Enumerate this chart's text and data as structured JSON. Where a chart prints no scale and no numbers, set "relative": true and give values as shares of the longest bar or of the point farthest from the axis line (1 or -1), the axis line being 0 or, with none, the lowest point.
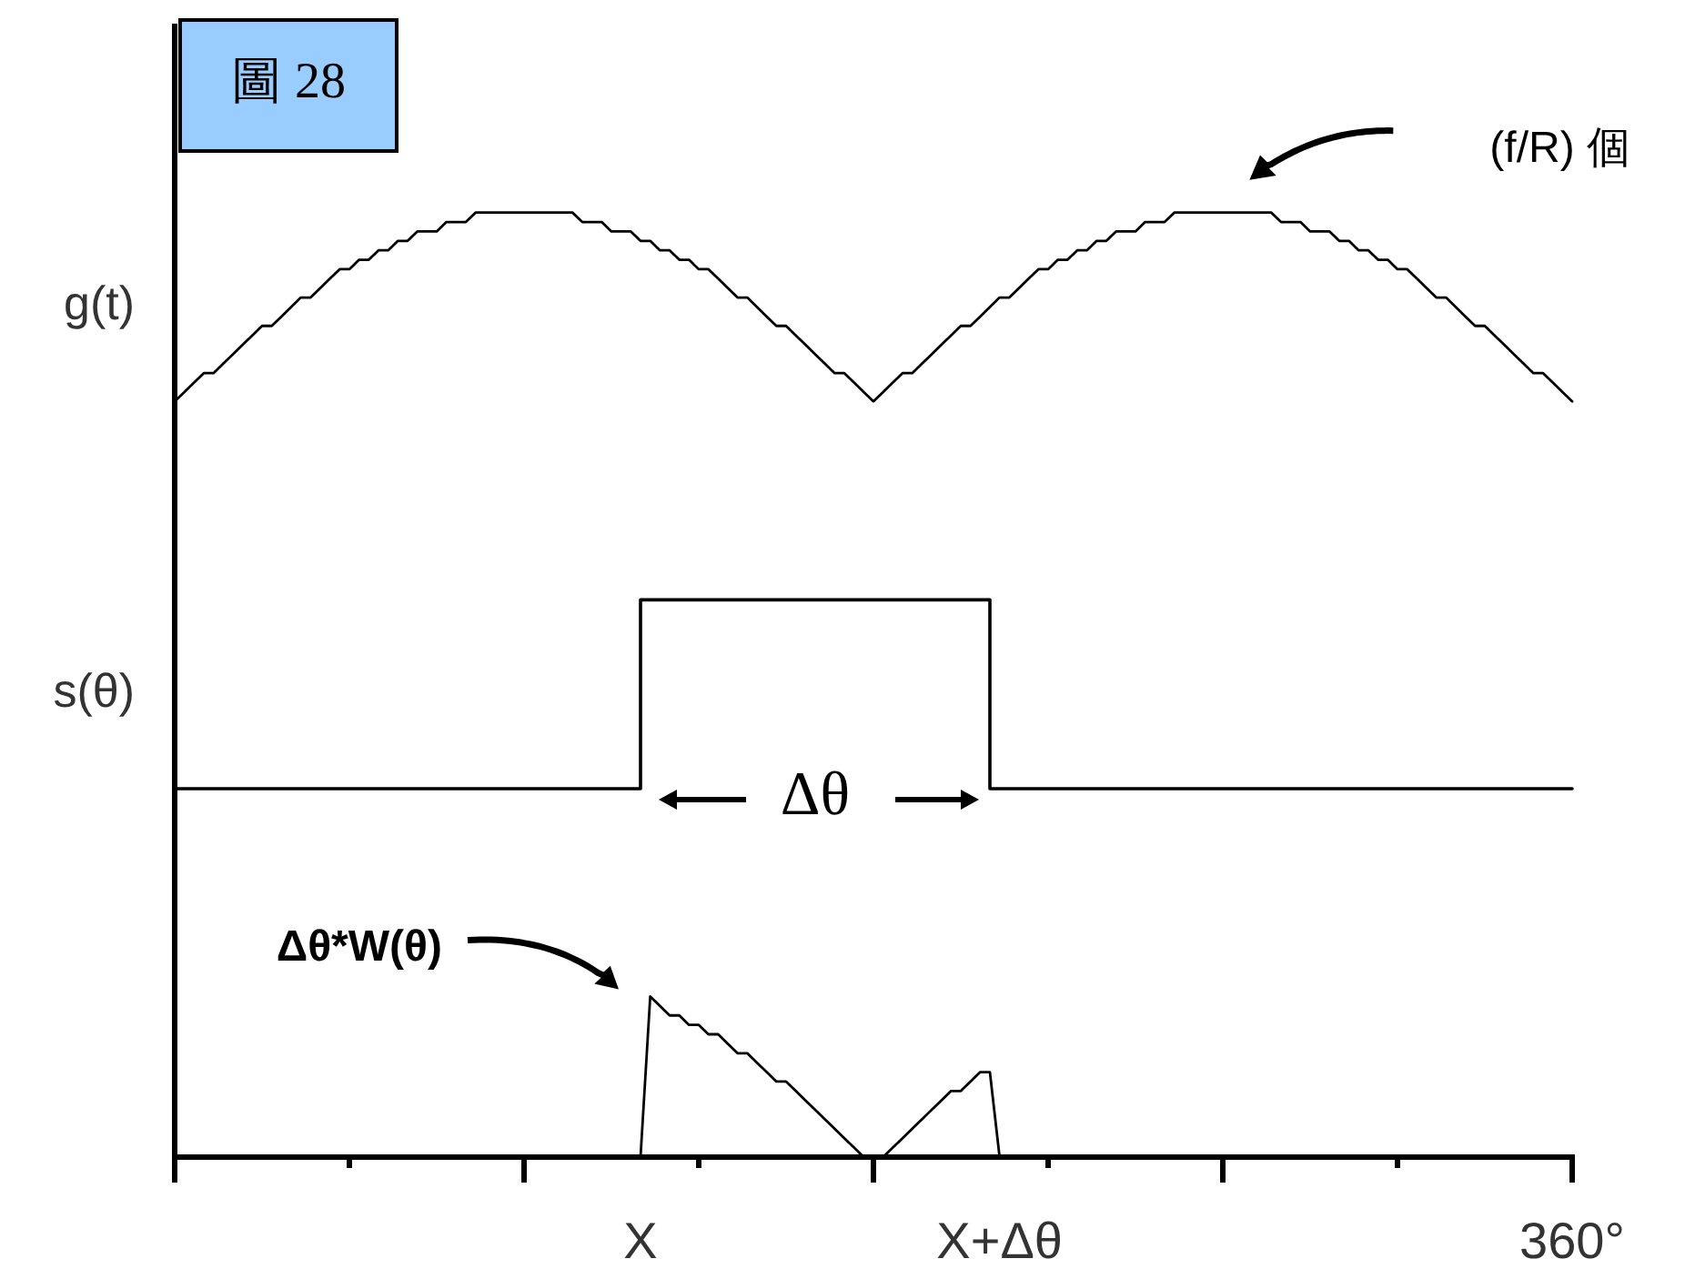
{
  "chart_data": {
    "type": "line",
    "title": "圖 28",
    "relative": true,
    "categories": [
      null,
      null,
      null,
      null,
      null,
      null,
      null,
      null,
      null,
      null,
      null,
      null,
      null,
      null,
      null,
      null,
      null,
      null,
      null,
      null,
      null,
      null,
      null,
      null,
      null,
      null,
      null,
      null,
      null,
      null,
      null,
      null,
      null,
      null,
      null,
      null,
      null,
      null,
      null,
      null,
      null,
      null,
      null,
      null,
      null,
      null,
      null,
      null,
      "X",
      null,
      null,
      null,
      null,
      null,
      null,
      null,
      null,
      null,
      null,
      null,
      null,
      null,
      null,
      null,
      null,
      null,
      null,
      null,
      null,
      null,
      null,
      null,
      null,
      null,
      null,
      null,
      null,
      null,
      null,
      null,
      null,
      null,
      null,
      null,
      null,
      "X+Δθ",
      null,
      null,
      null,
      null,
      null,
      null,
      null,
      null,
      null,
      null,
      null,
      null,
      null,
      null,
      null,
      null,
      null,
      null,
      null,
      null,
      null,
      null,
      null,
      null,
      null,
      null,
      null,
      null,
      null,
      null,
      null,
      null,
      null,
      null,
      null,
      null,
      null,
      null,
      null,
      null,
      null,
      null,
      null,
      null,
      null,
      null,
      null,
      null,
      null,
      null,
      null,
      null,
      null,
      null,
      null,
      null,
      null,
      null,
      "360°"
    ],
    "series": [
      {
        "name": "g(t)",
        "color": "#000000",
        "values": [
          0.8,
          0.81,
          0.82,
          0.83,
          0.83,
          0.84,
          0.85,
          0.86,
          0.87,
          0.88,
          0.88,
          0.89,
          0.9,
          0.91,
          0.91,
          0.92,
          0.93,
          0.94,
          0.94,
          0.95,
          0.95,
          0.96,
          0.96,
          0.97,
          0.97,
          0.98,
          0.98,
          0.98,
          0.99,
          0.99,
          0.99,
          1,
          1,
          1,
          1,
          1,
          1,
          1,
          1,
          1,
          1,
          1,
          0.99,
          0.99,
          0.99,
          0.98,
          0.98,
          0.98,
          0.97,
          0.97,
          0.96,
          0.96,
          0.95,
          0.95,
          0.94,
          0.94,
          0.93,
          0.92,
          0.91,
          0.91,
          0.9,
          0.89,
          0.88,
          0.88,
          0.87,
          0.86,
          0.85,
          0.84,
          0.83,
          0.83,
          0.82,
          0.81,
          0.8,
          0.81,
          0.82,
          0.83,
          0.83,
          0.84,
          0.85,
          0.86,
          0.87,
          0.88,
          0.88,
          0.89,
          0.9,
          0.91,
          0.91,
          0.92,
          0.93,
          0.94,
          0.94,
          0.95,
          0.95,
          0.96,
          0.96,
          0.97,
          0.97,
          0.98,
          0.98,
          0.98,
          0.99,
          0.99,
          0.99,
          1,
          1,
          1,
          1,
          1,
          1,
          1,
          1,
          1,
          1,
          1,
          0.99,
          0.99,
          0.99,
          0.98,
          0.98,
          0.98,
          0.97,
          0.97,
          0.96,
          0.96,
          0.95,
          0.95,
          0.94,
          0.94,
          0.93,
          0.92,
          0.91,
          0.91,
          0.9,
          0.89,
          0.88,
          0.88,
          0.87,
          0.86,
          0.85,
          0.84,
          0.83,
          0.83,
          0.82,
          0.81,
          0.8
        ]
      },
      {
        "name": "s(θ)",
        "type": "step",
        "color": "#000000",
        "values": [
          0.39,
          0.39,
          0.39,
          0.39,
          0.39,
          0.39,
          0.39,
          0.39,
          0.39,
          0.39,
          0.39,
          0.39,
          0.39,
          0.39,
          0.39,
          0.39,
          0.39,
          0.39,
          0.39,
          0.39,
          0.39,
          0.39,
          0.39,
          0.39,
          0.39,
          0.39,
          0.39,
          0.39,
          0.39,
          0.39,
          0.39,
          0.39,
          0.39,
          0.39,
          0.39,
          0.39,
          0.39,
          0.39,
          0.39,
          0.39,
          0.39,
          0.39,
          0.39,
          0.39,
          0.39,
          0.39,
          0.39,
          0.39,
          0.59,
          0.59,
          0.59,
          0.59,
          0.59,
          0.59,
          0.59,
          0.59,
          0.59,
          0.59,
          0.59,
          0.59,
          0.59,
          0.59,
          0.59,
          0.59,
          0.59,
          0.59,
          0.59,
          0.59,
          0.59,
          0.59,
          0.59,
          0.59,
          0.59,
          0.59,
          0.59,
          0.59,
          0.59,
          0.59,
          0.59,
          0.59,
          0.59,
          0.59,
          0.59,
          0.59,
          0.39,
          0.39,
          0.39,
          0.39,
          0.39,
          0.39,
          0.39,
          0.39,
          0.39,
          0.39,
          0.39,
          0.39,
          0.39,
          0.39,
          0.39,
          0.39,
          0.39,
          0.39,
          0.39,
          0.39,
          0.39,
          0.39,
          0.39,
          0.39,
          0.39,
          0.39,
          0.39,
          0.39,
          0.39,
          0.39,
          0.39,
          0.39,
          0.39,
          0.39,
          0.39,
          0.39,
          0.39,
          0.39,
          0.39,
          0.39,
          0.39,
          0.39,
          0.39,
          0.39,
          0.39,
          0.39,
          0.39,
          0.39,
          0.39,
          0.39,
          0.39,
          0.39,
          0.39,
          0.39,
          0.39,
          0.39,
          0.39,
          0.39,
          0.39,
          0.39,
          0.39
        ]
      },
      {
        "name": "Δθ*W(θ)",
        "color": "#000000",
        "values": [
          null,
          null,
          null,
          null,
          null,
          null,
          null,
          null,
          null,
          null,
          null,
          null,
          null,
          null,
          null,
          null,
          null,
          null,
          null,
          null,
          null,
          null,
          null,
          null,
          null,
          null,
          null,
          null,
          null,
          null,
          null,
          null,
          null,
          null,
          null,
          null,
          null,
          null,
          null,
          null,
          null,
          null,
          null,
          null,
          null,
          null,
          null,
          null,
          0,
          0.17,
          0.16,
          0.15,
          0.15,
          0.14,
          0.14,
          0.13,
          0.13,
          0.12,
          0.11,
          0.11,
          0.1,
          0.09,
          0.08,
          0.08,
          0.07,
          0.06,
          0.05,
          0.04,
          0.03,
          0.02,
          0.01,
          0,
          0,
          0,
          0.01,
          0.02,
          0.03,
          0.04,
          0.05,
          0.06,
          0.07,
          0.07,
          0.08,
          0.09,
          0.09,
          0,
          null,
          null,
          null,
          null,
          null,
          null,
          null,
          null,
          null,
          null,
          null,
          null,
          null,
          null,
          null,
          null,
          null,
          null,
          null,
          null,
          null,
          null,
          null,
          null,
          null,
          null,
          null,
          null,
          null,
          null,
          null,
          null,
          null,
          null,
          null,
          null,
          null,
          null,
          null,
          null,
          null,
          null,
          null,
          null,
          null,
          null,
          null,
          null,
          null,
          null,
          null,
          null,
          null,
          null,
          null,
          null,
          null,
          null,
          null
        ]
      }
    ],
    "annotations": [
      "(f/R) 個",
      "Δθ"
    ]
  }
}
